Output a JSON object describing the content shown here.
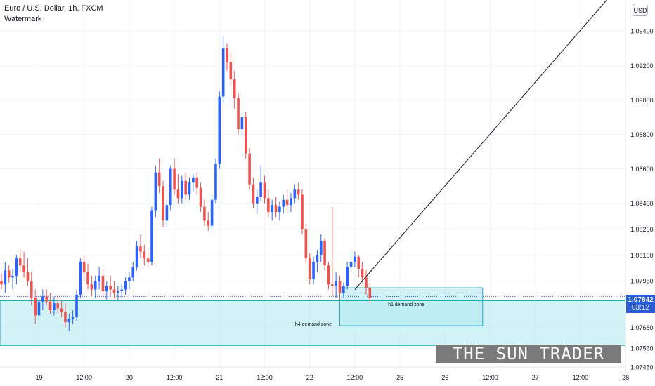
{
  "header": {
    "title": "Euro / U.S. Dollar, 1h, FXCM",
    "watermark_label": "Watermark"
  },
  "currency_button": "USD",
  "last_price": {
    "value": "1.07842",
    "countdown": "03:12"
  },
  "banner_text": "THE SUN TRADER",
  "colors": {
    "up": "#2962ff",
    "down": "#ef5350",
    "zone_fill": "#b2ebf2",
    "zone_border": "#26a6b8",
    "trendline": "#131722"
  },
  "chart_data": {
    "type": "candlestick",
    "symbol": "EURUSD",
    "ylim": [
      1.0745,
      1.0958
    ],
    "x_ticks": [
      {
        "label": "19",
        "pos": 10
      },
      {
        "label": "12:00",
        "pos": 22
      },
      {
        "label": "20",
        "pos": 34
      },
      {
        "label": "12:00",
        "pos": 46
      },
      {
        "label": "21",
        "pos": 58
      },
      {
        "label": "12:00",
        "pos": 70
      },
      {
        "label": "22",
        "pos": 82
      },
      {
        "label": "12:00",
        "pos": 94
      },
      {
        "label": "25",
        "pos": 106
      },
      {
        "label": "26",
        "pos": 118
      },
      {
        "label": "12:00",
        "pos": 130
      },
      {
        "label": "27",
        "pos": 142
      },
      {
        "label": "12:00",
        "pos": 154
      },
      {
        "label": "28",
        "pos": 166
      }
    ],
    "y_ticks": [
      {
        "label": "1.09400",
        "value": 1.094
      },
      {
        "label": "1.09200",
        "value": 1.092
      },
      {
        "label": "1.09000",
        "value": 1.09
      },
      {
        "label": "1.08800",
        "value": 1.088
      },
      {
        "label": "1.08600",
        "value": 1.086
      },
      {
        "label": "1.08400",
        "value": 1.084
      },
      {
        "label": "1.08250",
        "value": 1.0825
      },
      {
        "label": "1.08100",
        "value": 1.081
      },
      {
        "label": "1.07950",
        "value": 1.0795
      },
      {
        "label": "1.07680",
        "value": 1.0768
      },
      {
        "label": "1.07560",
        "value": 1.0756
      },
      {
        "label": "1.07450",
        "value": 1.0745
      }
    ],
    "last_price": 1.07842,
    "ohlc": [
      [
        1.0795,
        1.0799,
        1.079,
        1.0793
      ],
      [
        1.0793,
        1.0806,
        1.0788,
        1.0801
      ],
      [
        1.0801,
        1.0804,
        1.0794,
        1.0797
      ],
      [
        1.0797,
        1.0802,
        1.079,
        1.0798
      ],
      [
        1.0798,
        1.081,
        1.0793,
        1.0808
      ],
      [
        1.0808,
        1.0813,
        1.08,
        1.0804
      ],
      [
        1.0804,
        1.0812,
        1.0797,
        1.08
      ],
      [
        1.08,
        1.0808,
        1.0792,
        1.0795
      ],
      [
        1.0795,
        1.08,
        1.0781,
        1.0785
      ],
      [
        1.0785,
        1.079,
        1.077,
        1.0775
      ],
      [
        1.0775,
        1.0787,
        1.0772,
        1.0783
      ],
      [
        1.0783,
        1.079,
        1.0778,
        1.0786
      ],
      [
        1.0786,
        1.079,
        1.0781,
        1.0783
      ],
      [
        1.0783,
        1.0788,
        1.0776,
        1.0778
      ],
      [
        1.0778,
        1.0786,
        1.0775,
        1.0782
      ],
      [
        1.0782,
        1.0787,
        1.0776,
        1.0779
      ],
      [
        1.0779,
        1.0784,
        1.0774,
        1.0777
      ],
      [
        1.0777,
        1.0782,
        1.0768,
        1.0771
      ],
      [
        1.0771,
        1.0776,
        1.0766,
        1.0773
      ],
      [
        1.0773,
        1.0778,
        1.077,
        1.0774
      ],
      [
        1.0774,
        1.079,
        1.0772,
        1.0787
      ],
      [
        1.0787,
        1.0808,
        1.0785,
        1.0806
      ],
      [
        1.0806,
        1.081,
        1.0795,
        1.08
      ],
      [
        1.08,
        1.0805,
        1.079,
        1.0793
      ],
      [
        1.0793,
        1.0798,
        1.0786,
        1.079
      ],
      [
        1.079,
        1.0798,
        1.0785,
        1.0795
      ],
      [
        1.0795,
        1.0803,
        1.079,
        1.0798
      ],
      [
        1.0798,
        1.0802,
        1.0786,
        1.0789
      ],
      [
        1.0789,
        1.0795,
        1.0784,
        1.0792
      ],
      [
        1.0792,
        1.0798,
        1.0786,
        1.079
      ],
      [
        1.079,
        1.0795,
        1.0785,
        1.0788
      ],
      [
        1.0788,
        1.0792,
        1.0784,
        1.0789
      ],
      [
        1.0789,
        1.0793,
        1.0785,
        1.079
      ],
      [
        1.079,
        1.0797,
        1.0787,
        1.0795
      ],
      [
        1.0795,
        1.08,
        1.079,
        1.0797
      ],
      [
        1.0797,
        1.0806,
        1.0795,
        1.0803
      ],
      [
        1.0803,
        1.0818,
        1.0801,
        1.0815
      ],
      [
        1.0815,
        1.0822,
        1.0808,
        1.0812
      ],
      [
        1.0812,
        1.0816,
        1.0804,
        1.0808
      ],
      [
        1.0808,
        1.0812,
        1.0803,
        1.0806
      ],
      [
        1.0806,
        1.0838,
        1.0804,
        1.0836
      ],
      [
        1.0836,
        1.0862,
        1.0832,
        1.0858
      ],
      [
        1.0858,
        1.0866,
        1.0846,
        1.085
      ],
      [
        1.085,
        1.0853,
        1.0826,
        1.083
      ],
      [
        1.083,
        1.0842,
        1.0826,
        1.0839
      ],
      [
        1.0839,
        1.0862,
        1.0836,
        1.086
      ],
      [
        1.086,
        1.0866,
        1.0845,
        1.0848
      ],
      [
        1.0848,
        1.0857,
        1.084,
        1.0843
      ],
      [
        1.0843,
        1.0856,
        1.084,
        1.0853
      ],
      [
        1.0853,
        1.0858,
        1.0842,
        1.0845
      ],
      [
        1.0845,
        1.0855,
        1.0842,
        1.0852
      ],
      [
        1.0852,
        1.0857,
        1.0847,
        1.0855
      ],
      [
        1.0855,
        1.0858,
        1.0845,
        1.0849
      ],
      [
        1.0849,
        1.0852,
        1.0835,
        1.0838
      ],
      [
        1.0838,
        1.0842,
        1.0827,
        1.083
      ],
      [
        1.083,
        1.0835,
        1.0824,
        1.0827
      ],
      [
        1.0827,
        1.0845,
        1.0825,
        1.0842
      ],
      [
        1.0842,
        1.0866,
        1.084,
        1.0863
      ],
      [
        1.0863,
        1.0905,
        1.086,
        1.0902
      ],
      [
        1.0902,
        1.0937,
        1.0898,
        1.093
      ],
      [
        1.093,
        1.0933,
        1.0917,
        1.0922
      ],
      [
        1.0922,
        1.0927,
        1.0908,
        1.0912
      ],
      [
        1.0912,
        1.0917,
        1.0895,
        1.0901
      ],
      [
        1.0901,
        1.0904,
        1.088,
        1.0883
      ],
      [
        1.0883,
        1.0893,
        1.0879,
        1.089
      ],
      [
        1.089,
        1.0893,
        1.0866,
        1.0869
      ],
      [
        1.0869,
        1.0872,
        1.0848,
        1.0851
      ],
      [
        1.0851,
        1.0855,
        1.0837,
        1.084
      ],
      [
        1.084,
        1.0848,
        1.0834,
        1.0844
      ],
      [
        1.0844,
        1.0862,
        1.0841,
        1.0852
      ],
      [
        1.0852,
        1.0856,
        1.084,
        1.0843
      ],
      [
        1.0843,
        1.0848,
        1.0832,
        1.0835
      ],
      [
        1.0835,
        1.0842,
        1.083,
        1.0839
      ],
      [
        1.0839,
        1.0844,
        1.0832,
        1.0835
      ],
      [
        1.0835,
        1.0841,
        1.083,
        1.0838
      ],
      [
        1.0838,
        1.0845,
        1.0834,
        1.0842
      ],
      [
        1.0842,
        1.0848,
        1.0836,
        1.0839
      ],
      [
        1.0839,
        1.0846,
        1.0835,
        1.0843
      ],
      [
        1.0843,
        1.0851,
        1.084,
        1.0848
      ],
      [
        1.0848,
        1.0852,
        1.0842,
        1.0845
      ],
      [
        1.0845,
        1.0848,
        1.0822,
        1.0825
      ],
      [
        1.0825,
        1.0828,
        1.0805,
        1.0808
      ],
      [
        1.0808,
        1.0811,
        1.0793,
        1.0796
      ],
      [
        1.0796,
        1.0809,
        1.0793,
        1.0806
      ],
      [
        1.0806,
        1.0813,
        1.08,
        1.081
      ],
      [
        1.081,
        1.0822,
        1.0806,
        1.0818
      ],
      [
        1.0818,
        1.082,
        1.0801,
        1.0804
      ],
      [
        1.0804,
        1.0806,
        1.079,
        1.0793
      ],
      [
        1.0793,
        1.0838,
        1.0786,
        1.0792
      ],
      [
        1.0792,
        1.08,
        1.0785,
        1.0795
      ],
      [
        1.0795,
        1.0798,
        1.0784,
        1.0788
      ],
      [
        1.0788,
        1.0794,
        1.0785,
        1.0792
      ],
      [
        1.0792,
        1.0806,
        1.079,
        1.0803
      ],
      [
        1.0803,
        1.0812,
        1.08,
        1.0806
      ],
      [
        1.0806,
        1.0812,
        1.0803,
        1.0809
      ],
      [
        1.0809,
        1.081,
        1.0797,
        1.0802
      ],
      [
        1.0802,
        1.0806,
        1.0794,
        1.0797
      ],
      [
        1.0797,
        1.0801,
        1.0787,
        1.0791
      ],
      [
        1.0791,
        1.0794,
        1.0782,
        1.0785
      ]
    ],
    "horizontal_lines": [
      {
        "value": 1.0786,
        "style": "dotted",
        "color": "#2962ff"
      },
      {
        "value": 1.07835,
        "style": "solid",
        "color": "#26a6b8"
      }
    ],
    "zones": [
      {
        "label": "h4 demand zone",
        "y1": 1.07835,
        "y2": 1.07575,
        "x_start": 0,
        "x_end": 174
      },
      {
        "label": "h1 demand zone",
        "y1": 1.0791,
        "y2": 1.0769,
        "x_start": 90,
        "x_end": 128
      }
    ],
    "trendline": {
      "x1": 94,
      "y1": 1.079,
      "x2": 161,
      "y2": 1.0958
    }
  }
}
